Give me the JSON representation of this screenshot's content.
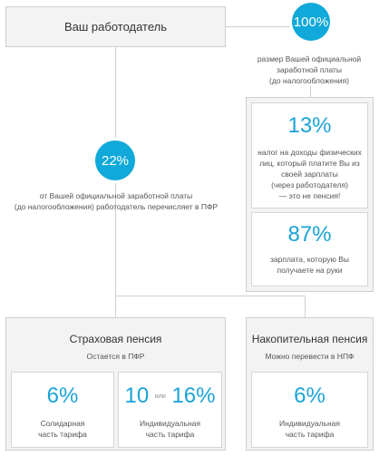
{
  "employer": {
    "label": "Ваш работодатель"
  },
  "salary": {
    "percent": "100%",
    "caption_lines": [
      "размер Вашей официальной",
      "заработной платы",
      "(до налогообложения)"
    ]
  },
  "employer_contribution": {
    "percent": "22%",
    "caption_lines": [
      "от Вашей официальной заработной платы",
      "(до налогообложения) работодатель перечисляет в ПФР"
    ]
  },
  "tax": {
    "percent": "13%",
    "caption_lines": [
      "налог на доходы физических",
      "лиц, который платите Вы из",
      "своей зарплаты",
      "(через работодателя)",
      "— это не пенсия!"
    ]
  },
  "net": {
    "percent": "87%",
    "caption_lines": [
      "зарплата, которую Вы",
      "получаете на руки"
    ]
  },
  "insurance_pension": {
    "title": "Страховая пенсия",
    "subtitle": "Остается в ПФР",
    "solidarity": {
      "percent": "6%",
      "caption_lines": [
        "Солидарная",
        "часть тарифа"
      ]
    },
    "individual": {
      "percent_a": "10",
      "or_label": "или",
      "percent_b": "16%",
      "caption_lines": [
        "Индивидуальная",
        "часть тарифа"
      ]
    }
  },
  "funded_pension": {
    "title": "Накопительная пенсия",
    "subtitle": "Можно перевести в НПФ",
    "individual": {
      "percent": "6%",
      "caption_lines": [
        "Индивидуальная",
        "часть тарифа"
      ]
    }
  },
  "colors": {
    "accent": "#10a9d9",
    "border": "#cfcfcf",
    "panel": "#f3f3f3"
  }
}
